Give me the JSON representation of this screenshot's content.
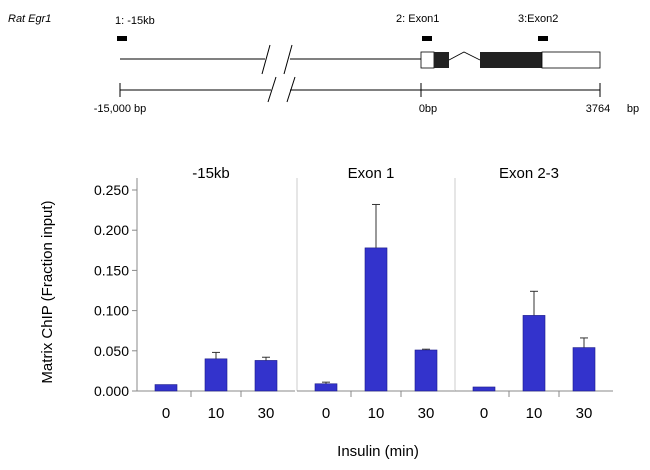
{
  "gene_map": {
    "species_label": "Rat Egr1",
    "probes": [
      {
        "label": "1: -15kb"
      },
      {
        "label": "2: Exon1"
      },
      {
        "label": "3:Exon2"
      }
    ],
    "scale": {
      "left_label": "-15,000 bp",
      "mid_label": "0bp",
      "right_label": "3764",
      "unit_label": "bp"
    }
  },
  "chart_data": [
    {
      "type": "bar",
      "title": "-15kb",
      "categories": [
        "0",
        "10",
        "30"
      ],
      "values": [
        0.008,
        0.04,
        0.038
      ],
      "errors": [
        0.0,
        0.008,
        0.004
      ],
      "color": "#3333cc",
      "ylabel": "Matrix ChIP (Fraction input)",
      "ylim": [
        0,
        0.25
      ],
      "yticks": [
        "0.250",
        "0.200",
        "0.150",
        "0.100",
        "0.050",
        "0.000"
      ]
    },
    {
      "type": "bar",
      "title": "Exon 1",
      "categories": [
        "0",
        "10",
        "30"
      ],
      "values": [
        0.009,
        0.178,
        0.051
      ],
      "errors": [
        0.002,
        0.054,
        0.001
      ],
      "color": "#3333cc",
      "ylim": [
        0,
        0.25
      ]
    },
    {
      "type": "bar",
      "title": "Exon 2-3",
      "categories": [
        "0",
        "10",
        "30"
      ],
      "values": [
        0.005,
        0.094,
        0.054
      ],
      "errors": [
        0.0,
        0.03,
        0.012
      ],
      "color": "#3333cc",
      "ylim": [
        0,
        0.25
      ]
    }
  ],
  "shared": {
    "ylabel": "Matrix ChIP (Fraction input)",
    "xlabel": "Insulin (min)",
    "yticks": [
      0.25,
      0.2,
      0.15,
      0.1,
      0.05,
      0.0
    ],
    "ytick_labels": [
      "0.250",
      "0.200",
      "0.150",
      "0.100",
      "0.050",
      "0.000"
    ]
  }
}
